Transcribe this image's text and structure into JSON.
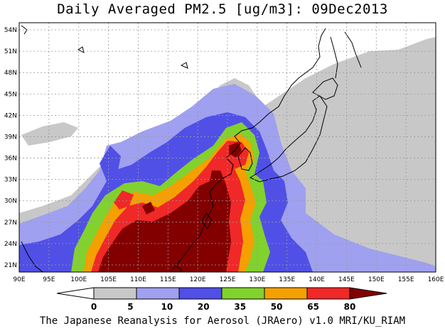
{
  "title": "Daily Averaged PM2.5 [ug/m3]: 09Dec2013",
  "credit": "The Japanese Reanalysis for Aerosol (JRAero) v1.0 MRI/KU_RIAM",
  "map": {
    "lon_range": [
      90,
      160
    ],
    "lat_range": [
      20,
      55
    ],
    "lon_ticks": [
      "90E",
      "95E",
      "100E",
      "105E",
      "110E",
      "115E",
      "120E",
      "125E",
      "130E",
      "135E",
      "140E",
      "145E",
      "150E",
      "155E",
      "160E"
    ],
    "lat_ticks": [
      "21N",
      "24N",
      "27N",
      "30N",
      "33N",
      "36N",
      "39N",
      "42N",
      "45N",
      "48N",
      "51N",
      "54N"
    ]
  },
  "legend": {
    "labels": [
      "0",
      "5",
      "10",
      "20",
      "35",
      "50",
      "65",
      "80"
    ],
    "colors": [
      "#ffffff",
      "#c8c8c8",
      "#a0a0f0",
      "#5050e6",
      "#82d22d",
      "#f5a000",
      "#f02828",
      "#820000"
    ],
    "unit": "ug/m3"
  }
}
